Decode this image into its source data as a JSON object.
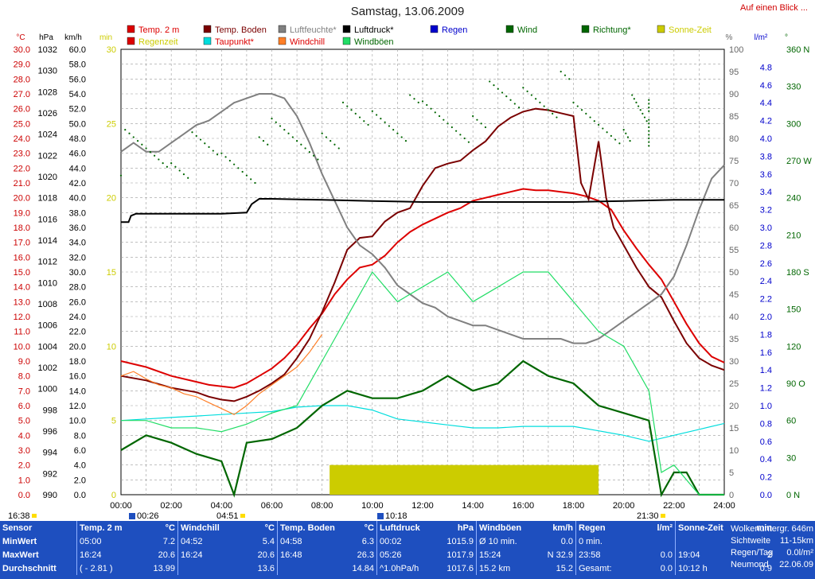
{
  "title": "Samstag, 13.06.2009",
  "top_link": "Auf einen Blick ...",
  "legend": [
    {
      "label": "Temp. 2 m",
      "color": "#dd0000",
      "text_color": "#dd0000"
    },
    {
      "label": "Temp. Boden",
      "color": "#7a0000",
      "text_color": "#7a0000"
    },
    {
      "label": "Luftfeuchte*",
      "color": "#808080",
      "text_color": "#808080"
    },
    {
      "label": "Luftdruck*",
      "color": "#000000",
      "text_color": "#000000"
    },
    {
      "label": "Regen",
      "color": "#0000cc",
      "text_color": "#0000cc"
    },
    {
      "label": "Wind",
      "color": "#006600",
      "text_color": "#006600"
    },
    {
      "label": "Richtung*",
      "color": "#006600",
      "text_color": "#006600"
    },
    {
      "label": "Sonne-Zeit",
      "color": "#cccc00",
      "text_color": "#cccc00"
    },
    {
      "label": "Regenzeit",
      "color": "#dd0000",
      "text_color": "#cccc00"
    },
    {
      "label": "Taupunkt*",
      "color": "#00dddd",
      "text_color": "#dd0000"
    },
    {
      "label": "Windchill",
      "color": "#ff7f27",
      "text_color": "#dd0000"
    },
    {
      "label": "Windböen",
      "color": "#22dd66",
      "text_color": "#006600"
    }
  ],
  "axis_units": {
    "temp": "°C",
    "pressure": "hPa",
    "wind": "km/h",
    "min": "min",
    "pct": "%",
    "rain": "l/m²",
    "dir": "°"
  },
  "axes": {
    "temp": [
      "30.0",
      "29.0",
      "28.0",
      "27.0",
      "26.0",
      "25.0",
      "24.0",
      "23.0",
      "22.0",
      "21.0",
      "20.0",
      "19.0",
      "18.0",
      "17.0",
      "16.0",
      "15.0",
      "14.0",
      "13.0",
      "12.0",
      "11.0",
      "10.0",
      "9.0",
      "8.0",
      "7.0",
      "6.0",
      "5.0",
      "4.0",
      "3.0",
      "2.0",
      "1.0",
      "0.0"
    ],
    "pressure": [
      "1032",
      "1030",
      "1028",
      "1026",
      "1024",
      "1022",
      "1020",
      "1018",
      "1016",
      "1014",
      "1012",
      "1010",
      "1008",
      "1006",
      "1004",
      "1002",
      "1000",
      "998",
      "996",
      "994",
      "992",
      "990"
    ],
    "wind": [
      "60.0",
      "58.0",
      "56.0",
      "54.0",
      "52.0",
      "50.0",
      "48.0",
      "46.0",
      "44.0",
      "42.0",
      "40.0",
      "38.0",
      "36.0",
      "34.0",
      "32.0",
      "30.0",
      "28.0",
      "26.0",
      "24.0",
      "22.0",
      "20.0",
      "18.0",
      "16.0",
      "14.0",
      "12.0",
      "10.0",
      "8.0",
      "6.0",
      "4.0",
      "2.0",
      "0.0"
    ],
    "minutes": [
      "30",
      "25",
      "20",
      "15",
      "10",
      "5",
      "0"
    ],
    "percent": [
      "100",
      "95",
      "90",
      "85",
      "80",
      "75",
      "70",
      "65",
      "60",
      "55",
      "50",
      "45",
      "40",
      "35",
      "30",
      "25",
      "20",
      "15",
      "10",
      "5",
      "0"
    ],
    "rain": [
      "4.8",
      "4.6",
      "4.4",
      "4.2",
      "4.0",
      "3.8",
      "3.6",
      "3.4",
      "3.2",
      "3.0",
      "2.8",
      "2.6",
      "2.4",
      "2.2",
      "2.0",
      "1.8",
      "1.6",
      "1.4",
      "1.2",
      "1.0",
      "0.8",
      "0.6",
      "0.4",
      "0.2",
      "0.0"
    ],
    "direction": [
      "360 N",
      "330",
      "300",
      "270 W",
      "240",
      "210",
      "180 S",
      "150",
      "120",
      "90 O",
      "60",
      "30",
      "0 N"
    ],
    "time": [
      "00:00",
      "02:00",
      "04:00",
      "06:00",
      "08:00",
      "10:00",
      "12:00",
      "14:00",
      "16:00",
      "18:00",
      "20:00",
      "22:00",
      "24:00"
    ]
  },
  "markers": {
    "start": "16:38",
    "t1": "00:26",
    "t2": "04:51",
    "t3": "10:18",
    "t4": "21:30"
  },
  "chart_data": {
    "type": "line",
    "title": "Samstag, 13.06.2009",
    "xlabel": "",
    "x_unit": "hours",
    "xlim": [
      0,
      24
    ],
    "grid": true,
    "series": [
      {
        "name": "Temp. 2 m",
        "unit": "°C",
        "axis": "temp",
        "x": [
          0,
          1,
          2,
          3,
          3.5,
          4,
          4.5,
          5,
          5.5,
          6,
          6.5,
          7,
          7.5,
          8,
          8.5,
          9,
          9.5,
          10,
          10.5,
          11,
          11.5,
          12,
          12.5,
          13,
          13.5,
          14,
          14.5,
          15,
          15.5,
          16,
          16.5,
          17,
          17.5,
          18,
          18.5,
          19,
          19.5,
          20,
          20.5,
          21,
          21.5,
          22,
          22.5,
          23,
          23.5,
          24
        ],
        "values": [
          9.0,
          8.6,
          8.0,
          7.6,
          7.4,
          7.3,
          7.2,
          7.5,
          8.0,
          8.5,
          9.2,
          10.1,
          11.2,
          12.2,
          13.5,
          14.5,
          15.3,
          15.5,
          16.1,
          17.0,
          17.7,
          18.2,
          18.6,
          19.0,
          19.3,
          19.8,
          20.0,
          20.2,
          20.4,
          20.6,
          20.5,
          20.5,
          20.4,
          20.3,
          20.1,
          19.8,
          19.2,
          17.8,
          16.6,
          15.5,
          14.5,
          13.0,
          11.5,
          10.2,
          9.3,
          8.9
        ]
      },
      {
        "name": "Temp. Boden",
        "unit": "°C",
        "axis": "temp",
        "x": [
          0,
          1,
          2,
          3,
          3.5,
          4,
          4.5,
          5,
          5.5,
          6,
          6.5,
          7,
          7.5,
          8,
          8.5,
          9,
          9.5,
          10,
          10.5,
          11,
          11.5,
          12,
          12.5,
          13,
          13.5,
          14,
          14.5,
          15,
          15.5,
          16,
          16.5,
          17,
          17.5,
          18,
          18.3,
          18.6,
          19,
          19.3,
          19.6,
          20,
          20.5,
          21,
          21.5,
          22,
          22.5,
          23,
          23.5,
          24
        ],
        "values": [
          8.0,
          7.7,
          7.2,
          6.9,
          6.6,
          6.4,
          6.3,
          6.6,
          7.0,
          7.5,
          8.1,
          9.2,
          10.5,
          12.3,
          14.3,
          16.5,
          17.3,
          17.4,
          18.4,
          19.0,
          19.3,
          20.8,
          22.0,
          22.3,
          22.5,
          23.2,
          23.8,
          24.8,
          25.4,
          25.8,
          26.0,
          25.9,
          25.7,
          25.5,
          21.0,
          19.9,
          23.8,
          20.0,
          18.0,
          16.8,
          15.3,
          14.0,
          13.3,
          11.7,
          10.2,
          9.2,
          8.7,
          8.4
        ]
      },
      {
        "name": "Luftfeuchte*",
        "unit": "%",
        "axis": "percent",
        "x": [
          0,
          0.5,
          1,
          1.5,
          2,
          2.5,
          3,
          3.5,
          4,
          4.5,
          5,
          5.5,
          6,
          6.5,
          7,
          7.5,
          8,
          8.5,
          9,
          9.5,
          10,
          10.5,
          11,
          11.5,
          12,
          12.5,
          13,
          13.5,
          14,
          14.5,
          15,
          15.5,
          16,
          16.5,
          17,
          17.5,
          18,
          18.5,
          19,
          19.5,
          20,
          20.5,
          21,
          21.5,
          22,
          22.5,
          23,
          23.5,
          24
        ],
        "values": [
          77,
          79,
          77,
          77,
          79,
          81,
          83,
          84,
          86,
          88,
          89,
          90,
          90,
          89,
          85,
          79,
          72,
          66,
          60,
          56,
          54,
          51,
          47,
          45,
          43,
          42,
          40,
          39,
          38,
          38,
          37,
          36,
          35,
          35,
          35,
          35,
          34,
          34,
          35,
          37,
          39,
          41,
          43,
          45,
          49,
          56,
          64,
          71,
          74
        ]
      },
      {
        "name": "Luftdruck*",
        "unit": "hPa",
        "axis": "pressure",
        "x": [
          0,
          0.3,
          0.4,
          0.6,
          1,
          3,
          4,
          5,
          5.2,
          5.5,
          6,
          8,
          10,
          12,
          14,
          16,
          18,
          20,
          22,
          24
        ],
        "values": [
          1015.7,
          1015.7,
          1016.3,
          1016.5,
          1016.5,
          1016.5,
          1016.5,
          1016.6,
          1017.4,
          1017.9,
          1017.9,
          1017.8,
          1017.7,
          1017.6,
          1017.6,
          1017.6,
          1017.6,
          1017.7,
          1017.8,
          1017.8
        ]
      },
      {
        "name": "Taupunkt*",
        "unit": "°C",
        "axis": "temp",
        "x": [
          0,
          1,
          2,
          3,
          4,
          5,
          6,
          7,
          8,
          9,
          10,
          11,
          12,
          13,
          14,
          15,
          16,
          17,
          18,
          19,
          20,
          21,
          22,
          23,
          24
        ],
        "values": [
          5.0,
          5.1,
          5.2,
          5.3,
          5.4,
          5.5,
          5.6,
          5.9,
          6.0,
          6.0,
          5.7,
          5.1,
          4.9,
          4.7,
          4.5,
          4.5,
          4.6,
          4.6,
          4.6,
          4.3,
          4.0,
          3.6,
          4.0,
          4.4,
          4.8
        ]
      },
      {
        "name": "Windchill",
        "unit": "°C",
        "axis": "temp",
        "x": [
          0,
          0.5,
          1,
          1.5,
          2,
          2.5,
          3,
          3.5,
          4,
          4.5,
          5,
          5.5,
          6,
          6.5,
          7,
          7.5,
          8
        ],
        "values": [
          8.0,
          8.3,
          7.8,
          7.4,
          7.2,
          6.8,
          6.6,
          6.2,
          5.8,
          5.4,
          6.0,
          6.8,
          7.4,
          8.0,
          8.6,
          9.6,
          10.8
        ]
      },
      {
        "name": "Wind",
        "unit": "km/h",
        "axis": "wind",
        "x": [
          0,
          1,
          2,
          3,
          4,
          4.5,
          5,
          6,
          7,
          8,
          9,
          10,
          11,
          12,
          13,
          14,
          15,
          16,
          17,
          18,
          19,
          20,
          21,
          21.5,
          22,
          22.5,
          23,
          24
        ],
        "values": [
          6.0,
          8.0,
          7.0,
          5.5,
          4.5,
          0.0,
          7.0,
          7.5,
          9.0,
          12.0,
          14.0,
          13.0,
          13.0,
          14.0,
          16.0,
          14.0,
          15.0,
          18.0,
          16.0,
          15.0,
          12.0,
          11.0,
          10.0,
          0.0,
          3.0,
          3.0,
          0.0,
          0.0
        ]
      },
      {
        "name": "Windböen",
        "unit": "km/h",
        "axis": "wind",
        "x": [
          0,
          1,
          2,
          3,
          4,
          5,
          6,
          7,
          8,
          9,
          10,
          11,
          12,
          13,
          14,
          15,
          16,
          17,
          18,
          19,
          20,
          21,
          21.5,
          22,
          23,
          24
        ],
        "values": [
          10.0,
          10.0,
          9.0,
          9.0,
          8.5,
          9.5,
          11.0,
          12.0,
          18.0,
          24.0,
          30.0,
          26.0,
          28.0,
          30.0,
          26.0,
          28.0,
          30.0,
          30.0,
          26.0,
          22.0,
          20.0,
          14.0,
          3.0,
          4.0,
          0.0,
          0.0
        ]
      },
      {
        "name": "Richtung*",
        "unit": "°",
        "axis": "direction",
        "x": [
          0,
          2,
          4,
          6,
          8,
          10,
          12,
          14,
          16,
          18,
          20,
          21
        ],
        "values": [
          278,
          275,
          270,
          285,
          300,
          305,
          300,
          315,
          325,
          300,
          305,
          300
        ]
      },
      {
        "name": "Sonne-Zeit",
        "unit": "min",
        "axis": "minutes",
        "x_start": 8.3,
        "x_end": 19.0,
        "values": [
          2
        ]
      }
    ]
  },
  "info_table": {
    "headers": [
      {
        "label": "Sensor",
        "unit": ""
      },
      {
        "label": "Temp. 2 m",
        "unit": "°C"
      },
      {
        "label": "Windchill",
        "unit": "°C"
      },
      {
        "label": "Temp. Boden",
        "unit": "°C"
      },
      {
        "label": "Luftdruck",
        "unit": "hPa"
      },
      {
        "label": "Windböen",
        "unit": "km/h"
      },
      {
        "label": "Regen",
        "unit": "l/m²"
      },
      {
        "label": "Sonne-Zeit",
        "unit": "min"
      }
    ],
    "rows": [
      {
        "label": "MinWert",
        "cells": [
          [
            "05:00",
            "7.2"
          ],
          [
            "04:52",
            "5.4"
          ],
          [
            "04:58",
            "6.3"
          ],
          [
            "00:02",
            "1015.9"
          ],
          [
            "Ø 10 min.",
            "0.0"
          ],
          [
            "0 min.",
            ""
          ],
          [
            "",
            ""
          ]
        ]
      },
      {
        "label": "MaxWert",
        "cells": [
          [
            "16:24",
            "20.6"
          ],
          [
            "16:24",
            "20.6"
          ],
          [
            "16:48",
            "26.3"
          ],
          [
            "05:26",
            "1017.9"
          ],
          [
            "15:24",
            "N 32.9"
          ],
          [
            "23:58",
            "0.0"
          ],
          [
            "19:04",
            "2"
          ]
        ]
      },
      {
        "label": "Durchschnitt",
        "cells": [
          [
            "( - 2.81 )",
            "13.99"
          ],
          [
            "",
            "13.6"
          ],
          [
            "",
            "14.84"
          ],
          [
            "^1.0hPa/h",
            "1017.6"
          ],
          [
            "15.2 km",
            "15.2"
          ],
          [
            "Gesamt:",
            "0.0"
          ],
          [
            "10:12 h",
            "0.9"
          ]
        ]
      }
    ],
    "extra": [
      {
        "label": "Wolkenuntergr.",
        "value": "646m"
      },
      {
        "label": "Sichtweite",
        "value": "11-15km"
      },
      {
        "label": "Regen/Tag",
        "value": "0.0l/m²"
      },
      {
        "label": "Neumond",
        "value": "22.06.09"
      }
    ]
  }
}
